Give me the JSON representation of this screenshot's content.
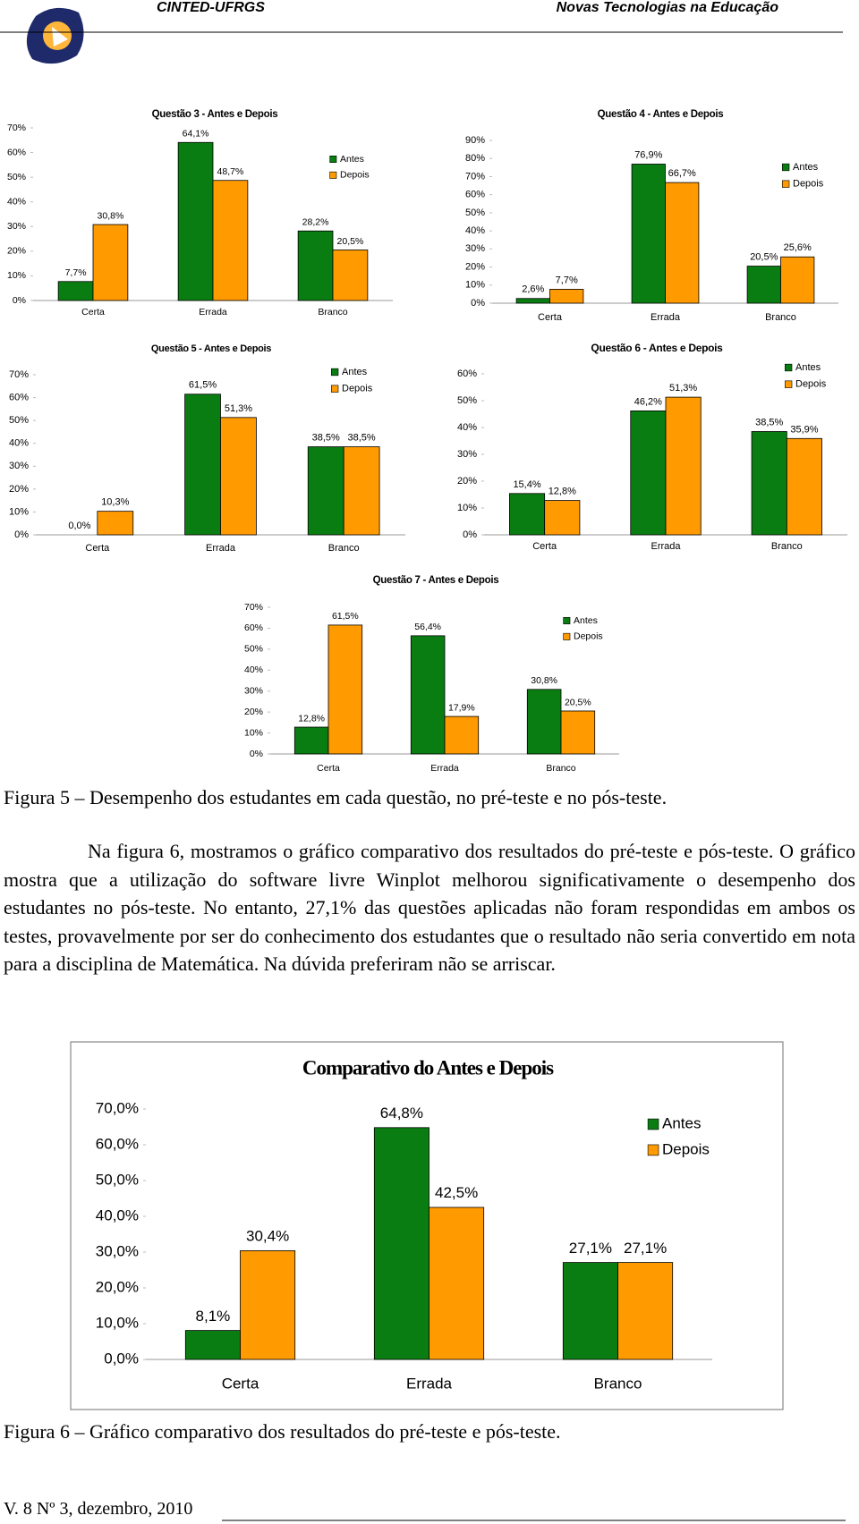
{
  "header": {
    "left": "CINTED-UFRGS",
    "right": "Novas Tecnologias na Educação"
  },
  "chart_data": [
    {
      "type": "bar",
      "title": "Questão 3 - Antes e Depois",
      "categories": [
        "Certa",
        "Errada",
        "Branco"
      ],
      "series": [
        {
          "name": "Antes",
          "color": "#0a7d12",
          "values": [
            7.7,
            64.1,
            28.2
          ],
          "value_labels": [
            "7,7%",
            "64,1%",
            "28,2%"
          ]
        },
        {
          "name": "Depois",
          "color": "#ff9a00",
          "values": [
            30.8,
            48.7,
            20.5
          ],
          "value_labels": [
            "30,8%",
            "48,7%",
            "20,5%"
          ]
        }
      ],
      "ylim": [
        0,
        70
      ],
      "yticks": [
        {
          "value": 0,
          "label": "0%"
        },
        {
          "value": 10,
          "label": "10%"
        },
        {
          "value": 20,
          "label": "20%"
        },
        {
          "value": 30,
          "label": "30%"
        },
        {
          "value": 40,
          "label": "40%"
        },
        {
          "value": 50,
          "label": "50%"
        },
        {
          "value": 60,
          "label": "60%"
        },
        {
          "value": 70,
          "label": "70%"
        }
      ]
    },
    {
      "type": "bar",
      "title": "Questão 4 - Antes e Depois",
      "categories": [
        "Certa",
        "Errada",
        "Branco"
      ],
      "series": [
        {
          "name": "Antes",
          "color": "#0a7d12",
          "values": [
            2.6,
            76.9,
            20.5
          ],
          "value_labels": [
            "2,6%",
            "76,9%",
            "20,5%"
          ]
        },
        {
          "name": "Depois",
          "color": "#ff9a00",
          "values": [
            7.7,
            66.7,
            25.6
          ],
          "value_labels": [
            "7,7%",
            "66,7%",
            "25,6%"
          ]
        }
      ],
      "ylim": [
        0,
        90
      ],
      "yticks": [
        {
          "value": 0,
          "label": "0%"
        },
        {
          "value": 10,
          "label": "10%"
        },
        {
          "value": 20,
          "label": "20%"
        },
        {
          "value": 30,
          "label": "30%"
        },
        {
          "value": 40,
          "label": "40%"
        },
        {
          "value": 50,
          "label": "50%"
        },
        {
          "value": 60,
          "label": "60%"
        },
        {
          "value": 70,
          "label": "70%"
        },
        {
          "value": 80,
          "label": "80%"
        },
        {
          "value": 90,
          "label": "90%"
        }
      ]
    },
    {
      "type": "bar",
      "title": "Questão 5 - Antes e Depois",
      "categories": [
        "Certa",
        "Errada",
        "Branco"
      ],
      "series": [
        {
          "name": "Antes",
          "color": "#0a7d12",
          "values": [
            0.0,
            61.5,
            38.5
          ],
          "value_labels": [
            "0,0%",
            "61,5%",
            "38,5%"
          ]
        },
        {
          "name": "Depois",
          "color": "#ff9a00",
          "values": [
            10.3,
            51.3,
            38.5
          ],
          "value_labels": [
            "10,3%",
            "51,3%",
            "38,5%"
          ]
        }
      ],
      "ylim": [
        0,
        70
      ],
      "yticks": [
        {
          "value": 0,
          "label": "0%"
        },
        {
          "value": 10,
          "label": "10%"
        },
        {
          "value": 20,
          "label": "20%"
        },
        {
          "value": 30,
          "label": "30%"
        },
        {
          "value": 40,
          "label": "40%"
        },
        {
          "value": 50,
          "label": "50%"
        },
        {
          "value": 60,
          "label": "60%"
        },
        {
          "value": 70,
          "label": "70%"
        }
      ]
    },
    {
      "type": "bar",
      "title": "Questão 6 - Antes e Depois",
      "categories": [
        "Certa",
        "Errada",
        "Branco"
      ],
      "series": [
        {
          "name": "Antes",
          "color": "#0a7d12",
          "values": [
            15.4,
            46.2,
            38.5
          ],
          "value_labels": [
            "15,4%",
            "46,2%",
            "38,5%"
          ]
        },
        {
          "name": "Depois",
          "color": "#ff9a00",
          "values": [
            12.8,
            51.3,
            35.9
          ],
          "value_labels": [
            "12,8%",
            "51,3%",
            "35,9%"
          ]
        }
      ],
      "ylim": [
        0,
        60
      ],
      "yticks": [
        {
          "value": 0,
          "label": "0%"
        },
        {
          "value": 10,
          "label": "10%"
        },
        {
          "value": 20,
          "label": "20%"
        },
        {
          "value": 30,
          "label": "30%"
        },
        {
          "value": 40,
          "label": "40%"
        },
        {
          "value": 50,
          "label": "50%"
        },
        {
          "value": 60,
          "label": "60%"
        }
      ]
    },
    {
      "type": "bar",
      "title": "Questão 7 - Antes e Depois",
      "categories": [
        "Certa",
        "Errada",
        "Branco"
      ],
      "series": [
        {
          "name": "Antes",
          "color": "#0a7d12",
          "values": [
            12.8,
            56.4,
            30.8
          ],
          "value_labels": [
            "12,8%",
            "56,4%",
            "30,8%"
          ]
        },
        {
          "name": "Depois",
          "color": "#ff9a00",
          "values": [
            61.5,
            17.9,
            20.5
          ],
          "value_labels": [
            "61,5%",
            "17,9%",
            "20,5%"
          ]
        }
      ],
      "ylim": [
        0,
        70
      ],
      "yticks": [
        {
          "value": 0,
          "label": "0%"
        },
        {
          "value": 10,
          "label": "10%"
        },
        {
          "value": 20,
          "label": "20%"
        },
        {
          "value": 30,
          "label": "30%"
        },
        {
          "value": 40,
          "label": "40%"
        },
        {
          "value": 50,
          "label": "50%"
        },
        {
          "value": 60,
          "label": "60%"
        },
        {
          "value": 70,
          "label": "70%"
        }
      ]
    },
    {
      "type": "bar",
      "title": "Comparativo do Antes e Depois",
      "categories": [
        "Certa",
        "Errada",
        "Branco"
      ],
      "series": [
        {
          "name": "Antes",
          "color": "#0a7d12",
          "values": [
            8.1,
            64.8,
            27.1
          ],
          "value_labels": [
            "8,1%",
            "64,8%",
            "27,1%"
          ]
        },
        {
          "name": "Depois",
          "color": "#ff9a00",
          "values": [
            30.4,
            42.5,
            27.1
          ],
          "value_labels": [
            "30,4%",
            "42,5%",
            "27,1%"
          ]
        }
      ],
      "ylim": [
        0,
        70
      ],
      "yticks": [
        {
          "value": 0,
          "label": "0,0%"
        },
        {
          "value": 10,
          "label": "10,0%"
        },
        {
          "value": 20,
          "label": "20,0%"
        },
        {
          "value": 30,
          "label": "30,0%"
        },
        {
          "value": 40,
          "label": "40,0%"
        },
        {
          "value": 50,
          "label": "50,0%"
        },
        {
          "value": 60,
          "label": "60,0%"
        },
        {
          "value": 70,
          "label": "70,0%"
        }
      ]
    }
  ],
  "caption_5": "Figura 5 – Desempenho dos estudantes em cada questão, no pré-teste e no pós-teste.",
  "paragraph": "Na figura 6, mostramos o gráfico comparativo dos resultados do pré-teste e pós-teste. O gráfico mostra que a utilização do software livre Winplot melhorou significativamente o desempenho dos estudantes no pós-teste. No entanto, 27,1%  das questões aplicadas não foram respondidas em ambos os testes, provavelmente por ser do conhecimento dos estudantes que o resultado não seria convertido em nota para a disciplina de Matemática. Na dúvida preferiram não se arriscar.",
  "caption_6": "Figura 6 – Gráfico comparativo dos resultados do pré-teste e pós-teste.",
  "footer": "V. 8 Nº 3, dezembro, 2010"
}
